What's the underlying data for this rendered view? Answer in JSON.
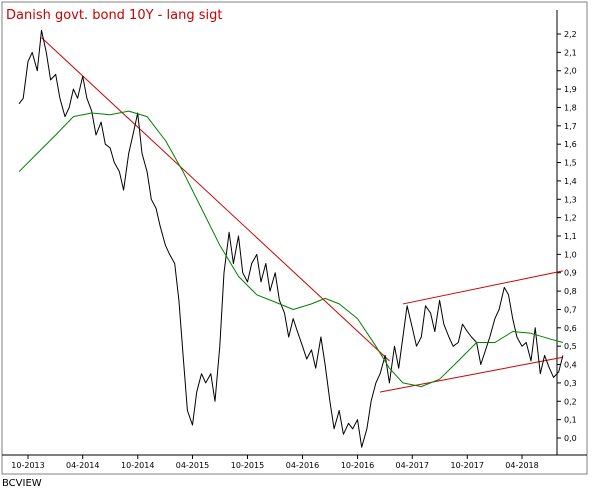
{
  "chart_data": {
    "type": "line",
    "title": "Danish govt. bond 10Y - lang sigt",
    "title_color": "#cc0000",
    "ylim": [
      -0.1,
      2.3
    ],
    "y_ticks": [
      "0,0",
      "0,1",
      "0,2",
      "0,3",
      "0,4",
      "0,5",
      "0,6",
      "0,7",
      "0,8",
      "0,9",
      "1,0",
      "1,1",
      "1,2",
      "1,3",
      "1,4",
      "1,5",
      "1,6",
      "1,7",
      "1,8",
      "1,9",
      "2,0",
      "2,1",
      "2,2"
    ],
    "x_ticks": [
      "10-2013",
      "04-2014",
      "10-2014",
      "04-2015",
      "10-2015",
      "04-2016",
      "10-2016",
      "04-2017",
      "10-2017",
      "04-2018"
    ],
    "x_tick_dates": [
      "2013-10-01",
      "2014-04-01",
      "2014-10-01",
      "2015-04-01",
      "2015-10-01",
      "2016-04-01",
      "2016-10-01",
      "2017-04-01",
      "2017-10-01",
      "2018-04-01"
    ],
    "grid": false,
    "series": [
      {
        "color": "#000000",
        "points": [
          [
            "2013-09-01",
            1.82
          ],
          [
            "2013-09-15",
            1.85
          ],
          [
            "2013-10-01",
            2.05
          ],
          [
            "2013-10-15",
            2.1
          ],
          [
            "2013-11-01",
            2.0
          ],
          [
            "2013-11-15",
            2.22
          ],
          [
            "2013-12-01",
            2.1
          ],
          [
            "2013-12-15",
            1.95
          ],
          [
            "2014-01-01",
            1.98
          ],
          [
            "2014-01-15",
            1.85
          ],
          [
            "2014-02-01",
            1.75
          ],
          [
            "2014-02-15",
            1.8
          ],
          [
            "2014-03-01",
            1.9
          ],
          [
            "2014-03-15",
            1.85
          ],
          [
            "2014-04-01",
            1.97
          ],
          [
            "2014-04-15",
            1.85
          ],
          [
            "2014-05-01",
            1.78
          ],
          [
            "2014-05-15",
            1.65
          ],
          [
            "2014-06-01",
            1.72
          ],
          [
            "2014-06-15",
            1.6
          ],
          [
            "2014-07-01",
            1.58
          ],
          [
            "2014-07-15",
            1.5
          ],
          [
            "2014-08-01",
            1.45
          ],
          [
            "2014-08-15",
            1.35
          ],
          [
            "2014-09-01",
            1.55
          ],
          [
            "2014-09-15",
            1.65
          ],
          [
            "2014-10-01",
            1.77
          ],
          [
            "2014-10-15",
            1.55
          ],
          [
            "2014-11-01",
            1.45
          ],
          [
            "2014-11-15",
            1.3
          ],
          [
            "2014-12-01",
            1.25
          ],
          [
            "2014-12-15",
            1.15
          ],
          [
            "2015-01-01",
            1.05
          ],
          [
            "2015-01-15",
            1.0
          ],
          [
            "2015-02-01",
            0.95
          ],
          [
            "2015-02-15",
            0.75
          ],
          [
            "2015-03-01",
            0.45
          ],
          [
            "2015-03-15",
            0.15
          ],
          [
            "2015-04-01",
            0.07
          ],
          [
            "2015-04-15",
            0.25
          ],
          [
            "2015-05-01",
            0.35
          ],
          [
            "2015-05-15",
            0.3
          ],
          [
            "2015-06-01",
            0.35
          ],
          [
            "2015-06-15",
            0.2
          ],
          [
            "2015-07-01",
            0.5
          ],
          [
            "2015-07-15",
            0.9
          ],
          [
            "2015-08-01",
            1.12
          ],
          [
            "2015-08-15",
            0.95
          ],
          [
            "2015-09-01",
            1.1
          ],
          [
            "2015-09-15",
            0.9
          ],
          [
            "2015-10-01",
            0.85
          ],
          [
            "2015-10-15",
            0.95
          ],
          [
            "2015-11-01",
            1.0
          ],
          [
            "2015-11-15",
            0.85
          ],
          [
            "2015-12-01",
            0.95
          ],
          [
            "2015-12-15",
            0.8
          ],
          [
            "2016-01-01",
            0.9
          ],
          [
            "2016-01-15",
            0.75
          ],
          [
            "2016-02-01",
            0.68
          ],
          [
            "2016-02-15",
            0.55
          ],
          [
            "2016-03-01",
            0.65
          ],
          [
            "2016-03-15",
            0.58
          ],
          [
            "2016-04-01",
            0.5
          ],
          [
            "2016-04-15",
            0.43
          ],
          [
            "2016-05-01",
            0.48
          ],
          [
            "2016-05-15",
            0.38
          ],
          [
            "2016-06-01",
            0.55
          ],
          [
            "2016-06-15",
            0.4
          ],
          [
            "2016-07-01",
            0.2
          ],
          [
            "2016-07-15",
            0.05
          ],
          [
            "2016-08-01",
            0.15
          ],
          [
            "2016-08-15",
            0.02
          ],
          [
            "2016-09-01",
            0.08
          ],
          [
            "2016-09-15",
            0.05
          ],
          [
            "2016-10-01",
            0.1
          ],
          [
            "2016-10-15",
            -0.05
          ],
          [
            "2016-11-01",
            0.05
          ],
          [
            "2016-11-15",
            0.2
          ],
          [
            "2016-12-01",
            0.3
          ],
          [
            "2016-12-15",
            0.35
          ],
          [
            "2017-01-01",
            0.45
          ],
          [
            "2017-01-15",
            0.3
          ],
          [
            "2017-02-01",
            0.5
          ],
          [
            "2017-02-15",
            0.38
          ],
          [
            "2017-03-01",
            0.55
          ],
          [
            "2017-03-15",
            0.72
          ],
          [
            "2017-04-01",
            0.6
          ],
          [
            "2017-04-15",
            0.5
          ],
          [
            "2017-05-01",
            0.55
          ],
          [
            "2017-05-15",
            0.72
          ],
          [
            "2017-06-01",
            0.68
          ],
          [
            "2017-06-15",
            0.58
          ],
          [
            "2017-07-01",
            0.75
          ],
          [
            "2017-07-15",
            0.62
          ],
          [
            "2017-08-01",
            0.55
          ],
          [
            "2017-08-15",
            0.5
          ],
          [
            "2017-09-01",
            0.52
          ],
          [
            "2017-09-15",
            0.62
          ],
          [
            "2017-10-01",
            0.58
          ],
          [
            "2017-10-15",
            0.55
          ],
          [
            "2017-11-01",
            0.52
          ],
          [
            "2017-11-15",
            0.4
          ],
          [
            "2017-12-01",
            0.48
          ],
          [
            "2017-12-15",
            0.55
          ],
          [
            "2018-01-01",
            0.65
          ],
          [
            "2018-01-15",
            0.7
          ],
          [
            "2018-02-01",
            0.82
          ],
          [
            "2018-02-15",
            0.78
          ],
          [
            "2018-03-01",
            0.65
          ],
          [
            "2018-03-15",
            0.55
          ],
          [
            "2018-04-01",
            0.5
          ],
          [
            "2018-04-15",
            0.52
          ],
          [
            "2018-05-01",
            0.42
          ],
          [
            "2018-05-15",
            0.6
          ],
          [
            "2018-06-01",
            0.35
          ],
          [
            "2018-06-15",
            0.45
          ],
          [
            "2018-07-01",
            0.38
          ],
          [
            "2018-07-15",
            0.33
          ],
          [
            "2018-08-01",
            0.36
          ],
          [
            "2018-08-15",
            0.45
          ]
        ]
      },
      {
        "color": "#008000",
        "points": [
          [
            "2013-09-01",
            1.45
          ],
          [
            "2013-11-01",
            1.55
          ],
          [
            "2014-01-01",
            1.65
          ],
          [
            "2014-03-01",
            1.75
          ],
          [
            "2014-05-01",
            1.77
          ],
          [
            "2014-07-01",
            1.76
          ],
          [
            "2014-09-01",
            1.78
          ],
          [
            "2014-11-01",
            1.75
          ],
          [
            "2015-01-01",
            1.62
          ],
          [
            "2015-03-01",
            1.45
          ],
          [
            "2015-05-01",
            1.25
          ],
          [
            "2015-07-01",
            1.05
          ],
          [
            "2015-09-01",
            0.88
          ],
          [
            "2015-11-01",
            0.78
          ],
          [
            "2016-01-01",
            0.74
          ],
          [
            "2016-03-01",
            0.7
          ],
          [
            "2016-05-01",
            0.73
          ],
          [
            "2016-06-15",
            0.76
          ],
          [
            "2016-08-01",
            0.73
          ],
          [
            "2016-10-01",
            0.65
          ],
          [
            "2016-12-01",
            0.5
          ],
          [
            "2017-01-15",
            0.38
          ],
          [
            "2017-03-01",
            0.3
          ],
          [
            "2017-05-01",
            0.28
          ],
          [
            "2017-07-01",
            0.32
          ],
          [
            "2017-09-01",
            0.42
          ],
          [
            "2017-11-01",
            0.52
          ],
          [
            "2018-01-01",
            0.52
          ],
          [
            "2018-03-01",
            0.58
          ],
          [
            "2018-05-01",
            0.57
          ],
          [
            "2018-07-01",
            0.54
          ],
          [
            "2018-08-15",
            0.52
          ]
        ]
      }
    ],
    "trendlines": [
      {
        "color": "#cc0000",
        "points": [
          [
            "2013-11-15",
            2.18
          ],
          [
            "2017-01-15",
            0.42
          ]
        ]
      },
      {
        "color": "#cc0000",
        "points": [
          [
            "2017-03-01",
            0.73
          ],
          [
            "2018-08-15",
            0.91
          ]
        ]
      },
      {
        "color": "#cc0000",
        "points": [
          [
            "2016-12-15",
            0.25
          ],
          [
            "2018-08-15",
            0.44
          ]
        ]
      }
    ]
  },
  "footer": {
    "label": "BCVIEW"
  }
}
